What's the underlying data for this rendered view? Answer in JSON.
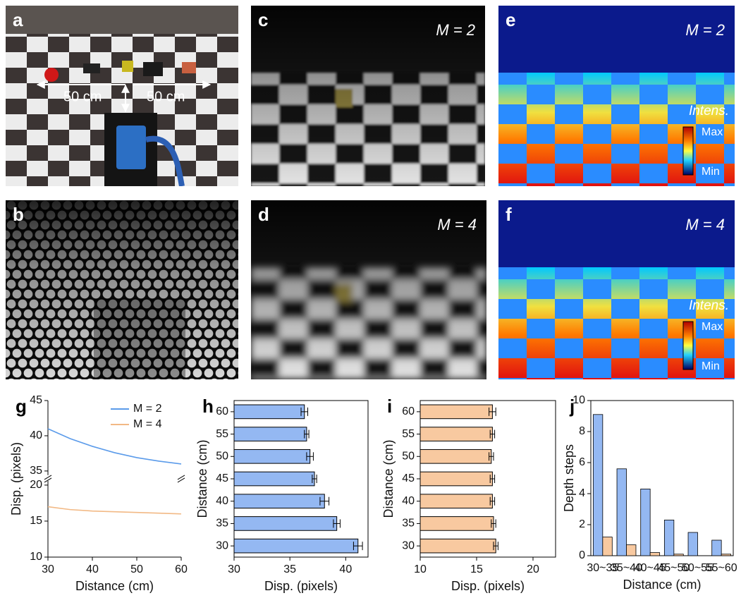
{
  "panels": [
    {
      "label": "a",
      "annotations": [
        "50 cm",
        "50 cm"
      ]
    },
    {
      "label": "b"
    },
    {
      "label": "c",
      "annotations": [
        "M = 2"
      ]
    },
    {
      "label": "d",
      "annotations": [
        "M = 4"
      ]
    },
    {
      "label": "e",
      "annotations": [
        "M = 2"
      ],
      "colorbar": {
        "title": "Intens.",
        "max": "Max",
        "min": "Min"
      }
    },
    {
      "label": "f",
      "annotations": [
        "M = 4"
      ],
      "colorbar": {
        "title": "Intens.",
        "max": "Max",
        "min": "Min"
      }
    }
  ],
  "chart_data": [
    {
      "panel": "g",
      "type": "line",
      "x": [
        30,
        35,
        40,
        45,
        50,
        55,
        60
      ],
      "series": [
        {
          "name": "M = 2",
          "color": "#5b9bea",
          "values": [
            41,
            39.6,
            38.5,
            37.6,
            36.9,
            36.4,
            36.0
          ]
        },
        {
          "name": "M = 4",
          "color": "#f2b985",
          "values": [
            17.0,
            16.6,
            16.4,
            16.3,
            16.2,
            16.1,
            16.0
          ]
        }
      ],
      "xlim": [
        30,
        60
      ],
      "xticks": [
        30,
        40,
        50,
        60
      ],
      "ylim": [
        10,
        45
      ],
      "ybreak": [
        20,
        35
      ],
      "yticks": [
        10,
        15,
        20,
        35,
        40,
        45
      ],
      "xlabel": "Distance (cm)",
      "ylabel": "Disp. (pixels)",
      "legend": "upper right"
    },
    {
      "panel": "h",
      "type": "bar",
      "orientation": "horizontal",
      "categories": [
        "30",
        "35",
        "40",
        "45",
        "50",
        "55",
        "60"
      ],
      "values": [
        41.1,
        39.2,
        38.1,
        37.2,
        36.8,
        36.5,
        36.3
      ],
      "errors": [
        0.4,
        0.3,
        0.4,
        0.2,
        0.3,
        0.2,
        0.3
      ],
      "color": "#94b8f2",
      "xlim": [
        30,
        42
      ],
      "xticks": [
        30,
        35,
        40
      ],
      "xlabel": "Disp. (pixels)",
      "ylabel": "Distance (cm)"
    },
    {
      "panel": "i",
      "type": "bar",
      "orientation": "horizontal",
      "categories": [
        "30",
        "35",
        "40",
        "45",
        "50",
        "55",
        "60"
      ],
      "values": [
        16.7,
        16.5,
        16.4,
        16.4,
        16.3,
        16.4,
        16.4
      ],
      "errors": [
        0.2,
        0.2,
        0.2,
        0.2,
        0.2,
        0.2,
        0.3
      ],
      "color": "#f8c9a0",
      "xlim": [
        10,
        22
      ],
      "xticks": [
        10,
        15,
        20
      ],
      "xlabel": "Disp. (pixels)",
      "ylabel": "Distance (cm)"
    },
    {
      "panel": "j",
      "type": "bar",
      "categories": [
        "30~35",
        "35~40",
        "40~45",
        "45~50",
        "50~55",
        "55~60"
      ],
      "series": [
        {
          "color": "#94b8f2",
          "values": [
            9.1,
            5.6,
            4.3,
            2.3,
            1.5,
            1.0
          ]
        },
        {
          "color": "#f8c9a0",
          "values": [
            1.2,
            0.7,
            0.2,
            0.1,
            0,
            0.1
          ]
        }
      ],
      "ylim": [
        0,
        10
      ],
      "yticks": [
        0,
        2,
        4,
        6,
        8,
        10
      ],
      "xlabel": "Distance (cm)",
      "ylabel": "Depth steps"
    }
  ]
}
